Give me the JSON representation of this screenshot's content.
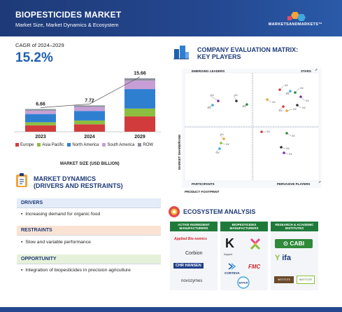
{
  "header": {
    "title": "BIOPESTICIDES MARKET",
    "subtitle": "Market Size, Market Dynamics & Ecosystem",
    "brand": "MARKETSANDMARKETS™"
  },
  "cagr": {
    "label": "CAGR of 2024–2029",
    "value": "15.2%"
  },
  "chart_data": {
    "type": "bar",
    "categories": [
      "2023",
      "2024",
      "2029"
    ],
    "totals_labels": [
      "6.66",
      "7.72",
      "15.66"
    ],
    "series": [
      {
        "name": "Europe",
        "values": [
          1.9,
          2.2,
          4.5
        ],
        "color": "#d23b3b"
      },
      {
        "name": "Asia Pacific",
        "values": [
          0.9,
          1.1,
          2.3
        ],
        "color": "#8cbf3f"
      },
      {
        "name": "North America",
        "values": [
          2.4,
          2.8,
          5.7
        ],
        "color": "#2f7fd1"
      },
      {
        "name": "South America",
        "values": [
          1.0,
          1.2,
          2.5
        ],
        "color": "#c79fd6"
      },
      {
        "name": "ROW",
        "values": [
          0.46,
          0.42,
          0.66
        ],
        "color": "#8a8f99"
      }
    ],
    "xlabel": "MARKET SIZE (USD BILLION)",
    "ylim": [
      0,
      16
    ]
  },
  "dynamics": {
    "title_line1": "MARKET DYNAMICS",
    "title_line2": "(DRIVERS AND RESTRAINTS)",
    "drivers_label": "DRIVERS",
    "drivers": [
      "Increasing demand for organic food"
    ],
    "restraints_label": "RESTRAINTS",
    "restraints": [
      "Slow and variable performance"
    ],
    "opportunity_label": "OPPORTUNITY",
    "opportunities": [
      "Integration of biopesticides in precision agriculture"
    ]
  },
  "matrix": {
    "title_line1": "COMPANY EVALUATION MATRIX:",
    "title_line2": "KEY PLAYERS",
    "quadrants": {
      "emerging": "EMERGING LEADERS",
      "stars": "STARS",
      "participants": "PARTICIPANTS",
      "pervasive": "PERVASIVE PLAYERS"
    },
    "y_axis": "MARKET SHARE/RANK",
    "x_axis": "PRODUCT FOOTPRINT",
    "point_label": "XX"
  },
  "ecosystem": {
    "title": "ECOSYSTEM ANALYSIS",
    "columns": [
      {
        "head": "ACTIVE INGREDIENT MANUFACTURERS",
        "logos": [
          "Applied Bio-nomics",
          "Corbion",
          "CHR HANSEN",
          "novozymes"
        ]
      },
      {
        "head": "BIOPESTICIDES MANUFACTURERS",
        "logos": [
          "Koppert",
          "CORTEVA",
          "FMC",
          "BAYER"
        ]
      },
      {
        "head": "RESEARCH & ACADEMIC INSTITUTES",
        "logos": [
          "CABI",
          "ifa",
          "INSTITUTE",
          "INSTITUTE"
        ]
      }
    ]
  }
}
